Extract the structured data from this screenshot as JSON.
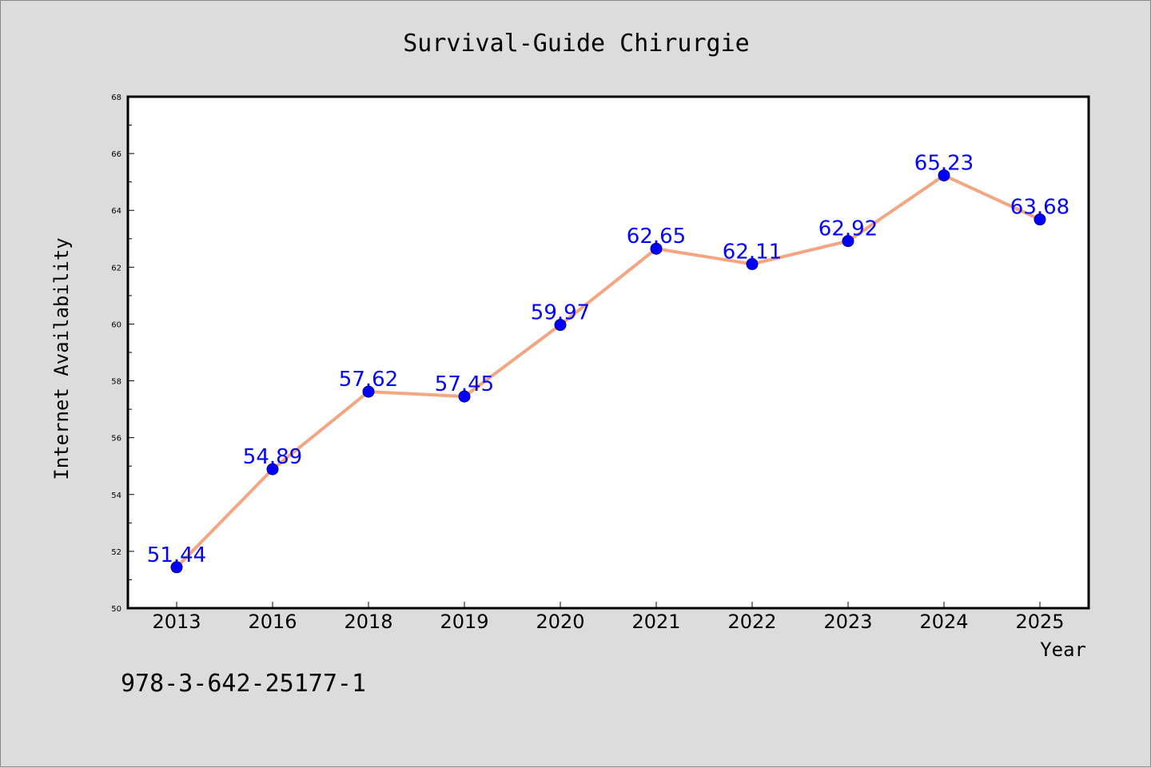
{
  "chart_data": {
    "type": "line",
    "title": "Survival-Guide Chirurgie",
    "xlabel": "Year",
    "ylabel": "Internet Availability",
    "categories": [
      "2013",
      "2016",
      "2018",
      "2019",
      "2020",
      "2021",
      "2022",
      "2023",
      "2024",
      "2025"
    ],
    "series": [
      {
        "values": [
          51.44,
          54.89,
          57.62,
          57.45,
          59.97,
          62.65,
          62.11,
          62.92,
          65.23,
          63.68
        ],
        "line_color": "#f4a582",
        "marker_color": "#0000ff",
        "label_color": "#0000ff"
      }
    ],
    "data_labels": [
      "51.44",
      "54.89",
      "57.62",
      "57.45",
      "59.97",
      "62.65",
      "62.11",
      "62.92",
      "65.23",
      "63.68"
    ],
    "ylim": [
      50,
      68
    ],
    "yticks": [
      "50",
      "52",
      "54",
      "56",
      "58",
      "60",
      "62",
      "64",
      "66",
      "68"
    ],
    "grid": false,
    "legend": "none"
  },
  "annotation": "978-3-642-25177-1",
  "colors": {
    "background": "#dcdcdc",
    "plot_area": "#ffffff",
    "axis": "#000000"
  }
}
